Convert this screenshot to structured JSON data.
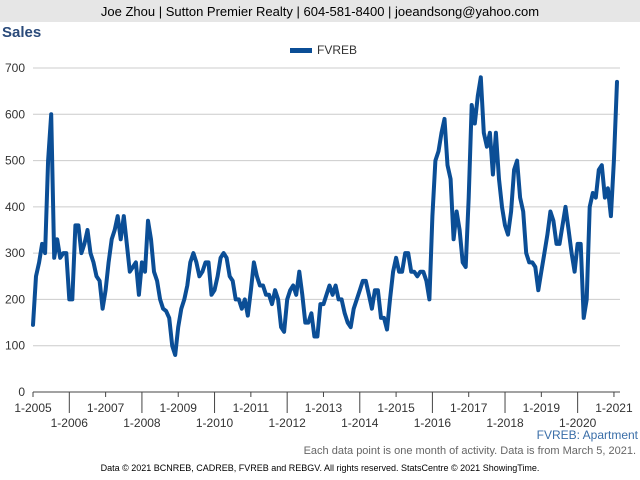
{
  "header": {
    "contact": "Joe Zhou | Sutton Premier Realty | 604-581-8400 | joeandsong@yahoo.com"
  },
  "legend": {
    "series_name": "FVREB"
  },
  "subset_label": "FVREB: Apartment",
  "footnote": "Each data point is one month of activity. Data is from March 5, 2021.",
  "footer": "Data © 2021 BCNREB, CADREB, FVREB and REBGV. All rights reserved. StatsCentre © 2021 ShowingTime.",
  "colors": {
    "series": "#0b4e96",
    "grid": "#cccccc",
    "axis": "#444444"
  },
  "chart_data": {
    "type": "line",
    "title": "Sales",
    "xlabel": "",
    "ylabel": "",
    "ylim": [
      0,
      700
    ],
    "yticks": [
      0,
      100,
      200,
      300,
      400,
      500,
      600,
      700
    ],
    "xlim": [
      "2005-01",
      "2021-03"
    ],
    "xticks_row1": [
      "1-2005",
      "1-2007",
      "1-2009",
      "1-2011",
      "1-2013",
      "1-2015",
      "1-2017",
      "1-2019",
      "1-2021"
    ],
    "xticks_row2": [
      "1-2006",
      "1-2008",
      "1-2010",
      "1-2012",
      "1-2014",
      "1-2016",
      "1-2018",
      "1-2020"
    ],
    "grid": true,
    "legend_position": "top-center",
    "series": [
      {
        "name": "FVREB",
        "start": "2005-01",
        "values": [
          145,
          250,
          280,
          320,
          300,
          500,
          600,
          290,
          330,
          290,
          300,
          300,
          200,
          200,
          360,
          360,
          300,
          320,
          350,
          300,
          280,
          250,
          240,
          180,
          220,
          280,
          330,
          350,
          380,
          330,
          380,
          320,
          260,
          270,
          280,
          210,
          280,
          260,
          370,
          330,
          260,
          240,
          200,
          180,
          175,
          160,
          100,
          80,
          140,
          180,
          200,
          230,
          280,
          300,
          280,
          250,
          260,
          280,
          280,
          210,
          220,
          250,
          290,
          300,
          290,
          250,
          240,
          200,
          200,
          180,
          200,
          165,
          220,
          280,
          250,
          230,
          230,
          210,
          210,
          190,
          220,
          200,
          140,
          130,
          200,
          220,
          230,
          210,
          260,
          210,
          150,
          150,
          170,
          120,
          120,
          190,
          190,
          210,
          230,
          210,
          230,
          200,
          200,
          170,
          150,
          140,
          180,
          200,
          220,
          240,
          240,
          210,
          180,
          220,
          220,
          160,
          160,
          135,
          200,
          260,
          290,
          260,
          260,
          300,
          300,
          260,
          260,
          250,
          260,
          260,
          240,
          200,
          380,
          500,
          520,
          560,
          590,
          490,
          460,
          330,
          390,
          350,
          280,
          270,
          420,
          620,
          580,
          640,
          680,
          560,
          530,
          560,
          470,
          560,
          460,
          400,
          360,
          340,
          390,
          480,
          500,
          420,
          390,
          300,
          280,
          280,
          270,
          220,
          260,
          300,
          340,
          390,
          370,
          320,
          320,
          360,
          400,
          350,
          300,
          260,
          320,
          320,
          160,
          200,
          400,
          430,
          420,
          480,
          490,
          420,
          440,
          380,
          500,
          670
        ]
      }
    ]
  }
}
